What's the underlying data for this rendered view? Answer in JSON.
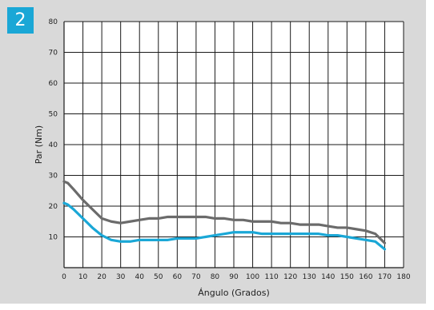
{
  "badge": "2",
  "chart_data": {
    "type": "line",
    "xlabel": "Ángulo (Grados)",
    "ylabel": "Par (Nm)",
    "xlim": [
      0,
      180
    ],
    "ylim": [
      0,
      80
    ],
    "xticks": [
      "0",
      "10",
      "20",
      "30",
      "40",
      "50",
      "60",
      "70",
      "80",
      "90",
      "100",
      "110",
      "120",
      "130",
      "140",
      "150",
      "160",
      "170",
      "180"
    ],
    "yticks": [
      "10",
      "20",
      "30",
      "40",
      "50",
      "60",
      "70",
      "80"
    ],
    "grid": true,
    "series": [
      {
        "color": "#6b6b6b",
        "x": [
          0,
          2,
          5,
          10,
          15,
          20,
          25,
          30,
          35,
          40,
          45,
          50,
          55,
          60,
          65,
          70,
          75,
          80,
          85,
          90,
          95,
          100,
          105,
          110,
          115,
          120,
          125,
          130,
          135,
          140,
          145,
          150,
          155,
          160,
          165,
          170
        ],
        "y": [
          28,
          27.5,
          25.5,
          22,
          19,
          16,
          15,
          14.5,
          15,
          15.5,
          16,
          16,
          16.5,
          16.5,
          16.5,
          16.5,
          16.5,
          16,
          16,
          15.5,
          15.5,
          15,
          15,
          15,
          14.5,
          14.5,
          14,
          14,
          14,
          13.5,
          13,
          13,
          12.5,
          12,
          11,
          8
        ]
      },
      {
        "color": "#1aa7d6",
        "x": [
          0,
          2,
          5,
          10,
          15,
          20,
          25,
          30,
          35,
          40,
          45,
          50,
          55,
          60,
          65,
          70,
          75,
          80,
          85,
          90,
          95,
          100,
          105,
          110,
          115,
          120,
          125,
          130,
          135,
          140,
          145,
          150,
          155,
          160,
          165,
          170
        ],
        "y": [
          21,
          20.5,
          19,
          16,
          13,
          10.5,
          9,
          8.5,
          8.5,
          9,
          9,
          9,
          9,
          9.5,
          9.5,
          9.5,
          10,
          10.5,
          11,
          11.5,
          11.5,
          11.5,
          11,
          11,
          11,
          11,
          11,
          11,
          11,
          10.5,
          10.5,
          10,
          9.5,
          9,
          8.5,
          6
        ]
      }
    ]
  }
}
